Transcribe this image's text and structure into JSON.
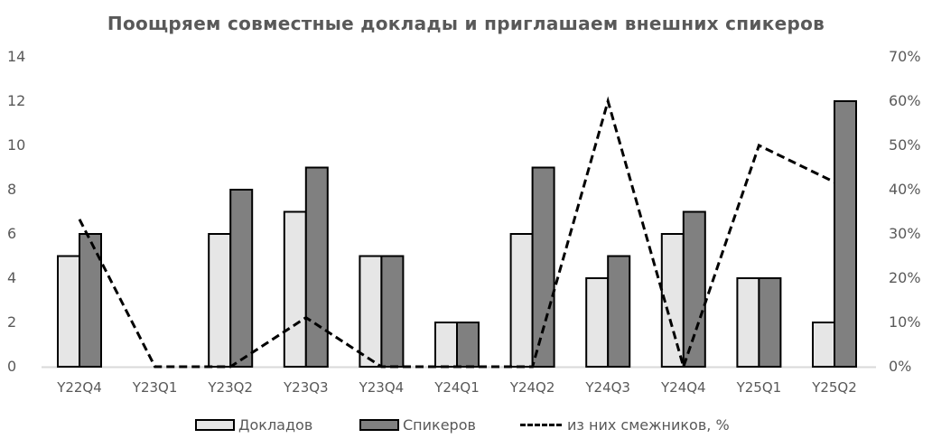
{
  "chart_data": {
    "type": "bar",
    "title": "Поощряем совместные доклады и приглашаем внешних спикеров",
    "categories": [
      "Y22Q4",
      "Y23Q1",
      "Y23Q2",
      "Y23Q3",
      "Y23Q4",
      "Y24Q1",
      "Y24Q2",
      "Y24Q3",
      "Y24Q4",
      "Y25Q1",
      "Y25Q2"
    ],
    "series": [
      {
        "name": "Докладов",
        "type": "bar",
        "axis": "left",
        "color": "#e6e6e6",
        "values": [
          5,
          0,
          6,
          7,
          5,
          2,
          6,
          4,
          6,
          4,
          2
        ]
      },
      {
        "name": "Спикеров",
        "type": "bar",
        "axis": "left",
        "color": "#808080",
        "values": [
          6,
          0,
          8,
          9,
          5,
          2,
          9,
          5,
          7,
          4,
          12
        ]
      },
      {
        "name": "из них смежников, %",
        "type": "line",
        "style": "dashed",
        "axis": "right",
        "color": "#000000",
        "values": [
          33.3,
          0,
          0,
          11.1,
          0,
          0,
          0,
          60,
          0,
          50,
          41.7
        ]
      }
    ],
    "xlabel": "",
    "ylabel": "",
    "ylim": [
      0,
      14
    ],
    "y2lim": [
      0,
      70
    ],
    "yticks": [
      "0",
      "2",
      "4",
      "6",
      "8",
      "10",
      "12",
      "14"
    ],
    "y2ticks": [
      "0%",
      "10%",
      "20%",
      "30%",
      "40%",
      "50%",
      "60%",
      "70%"
    ],
    "grid": false,
    "legend_position": "bottom"
  },
  "legend": {
    "bars1": "Докладов",
    "bars2": "Спикеров",
    "line": "из них смежников, %"
  }
}
